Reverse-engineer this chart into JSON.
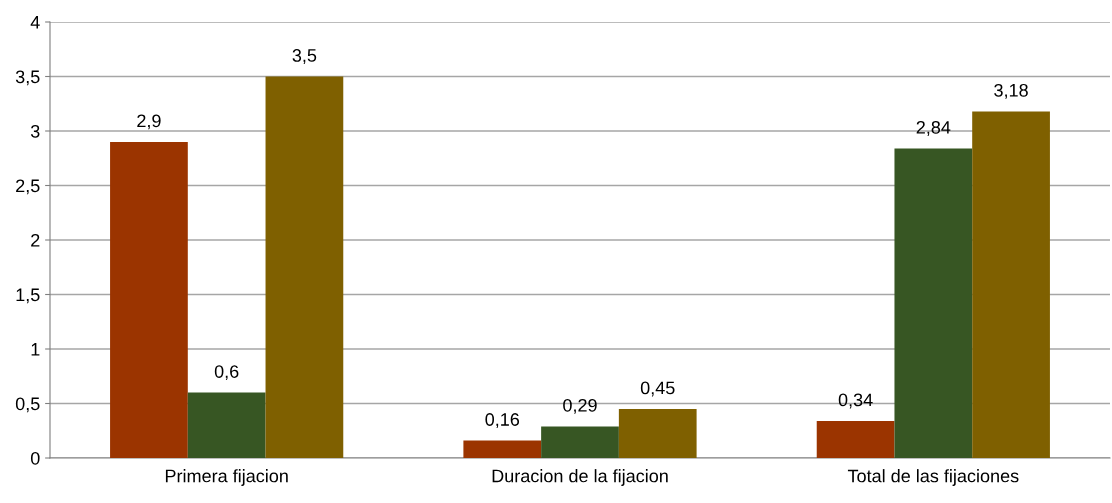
{
  "chart_data": {
    "type": "bar",
    "categories": [
      "Primera fijacion",
      "Duracion de la fijacion",
      "Total de las fijaciones"
    ],
    "series": [
      {
        "color": "#9b3400",
        "values": [
          2.9,
          0.16,
          0.34
        ],
        "value_labels": [
          "2,9",
          "0,16",
          "0,34"
        ]
      },
      {
        "color": "#375623",
        "values": [
          0.6,
          0.29,
          2.84
        ],
        "value_labels": [
          "0,6",
          "0,29",
          "2,84"
        ]
      },
      {
        "color": "#7f6000",
        "values": [
          3.5,
          0.45,
          3.18
        ],
        "value_labels": [
          "3,5",
          "0,45",
          "3,18"
        ]
      }
    ],
    "ylim": [
      0,
      4
    ],
    "yticks": [
      0,
      {
        "value": 0.5,
        "label": "0,5"
      },
      1,
      {
        "value": 1.5,
        "label": "1,5"
      },
      2,
      {
        "value": 2.5,
        "label": "2,5"
      },
      3,
      {
        "value": 3.5,
        "label": "3,5"
      },
      4
    ],
    "grid": "y",
    "legend": false
  }
}
